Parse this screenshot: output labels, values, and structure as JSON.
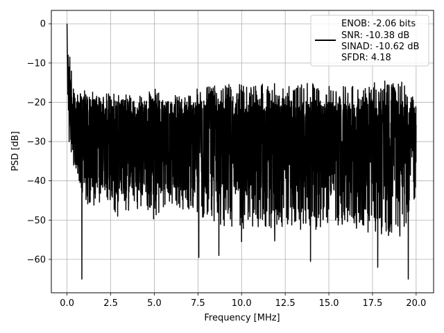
{
  "chart_data": {
    "type": "line",
    "xlabel": "Frequency [MHz]",
    "ylabel": "PSD [dB]",
    "xlim": [
      -0.9,
      21.0
    ],
    "ylim": [
      -68.5,
      3.4
    ],
    "xticks": [
      0.0,
      2.5,
      5.0,
      7.5,
      10.0,
      12.5,
      15.0,
      17.5,
      20.0
    ],
    "xtick_labels": [
      "0.0",
      "2.5",
      "5.0",
      "7.5",
      "10.0",
      "12.5",
      "15.0",
      "17.5",
      "20.0"
    ],
    "yticks": [
      0,
      -10,
      -20,
      -30,
      -40,
      -50,
      -60
    ],
    "ytick_labels": [
      "0",
      "−10",
      "−20",
      "−30",
      "−40",
      "−50",
      "−60"
    ],
    "grid": true,
    "legend_position": "top-right",
    "legend_lines": [
      "ENOB: -2.06 bits",
      "SNR: -10.38 dB",
      "SINAD: -10.62 dB",
      "SFDR: 4.18"
    ],
    "series": [
      {
        "color": "#000000",
        "x": [
          0.0,
          0.02,
          0.04,
          0.06,
          0.08,
          0.1,
          0.12,
          0.15,
          0.2,
          0.25,
          0.3,
          0.4,
          0.5,
          0.6,
          0.8,
          1.0,
          1.5,
          2.0,
          3.0,
          4.0,
          5.0,
          6.0,
          7.0,
          8.0,
          9.0,
          10.0,
          11.0,
          12.0,
          13.0,
          14.0,
          15.0,
          16.0,
          17.0,
          18.0,
          19.0,
          20.0
        ],
        "values": [
          0,
          -10,
          -14,
          -9,
          -17,
          -12,
          -19,
          -15,
          -22,
          -18,
          -27,
          -22,
          -31,
          -28,
          -30,
          -29,
          -30,
          -30,
          -30,
          -30,
          -30,
          -30,
          -30,
          -30,
          -30,
          -30,
          -30,
          -30,
          -30,
          -30,
          -30,
          -30,
          -30,
          -30,
          -30,
          -30
        ],
        "band_upper": [
          0,
          -8,
          -12,
          -8,
          -13,
          -11,
          -15,
          -14,
          -17,
          -17,
          -18,
          -19,
          -19,
          -19,
          -17,
          -18,
          -19,
          -19,
          -19,
          -20,
          -19,
          -20,
          -20,
          -19,
          -20,
          -20,
          -19,
          -20,
          -21,
          -19,
          -20,
          -20,
          -19,
          -20,
          -19,
          -22
        ],
        "band_lower": [
          0,
          -12,
          -18,
          -14,
          -22,
          -25,
          -30,
          -31,
          -34,
          -35,
          -36,
          -37,
          -40,
          -41,
          -43,
          -45,
          -48,
          -45,
          -49,
          -47,
          -50,
          -46,
          -49,
          -50,
          -52,
          -54,
          -52,
          -53,
          -52,
          -53,
          -52,
          -51,
          -53,
          -54,
          -55,
          -45
        ]
      }
    ],
    "dips": [
      {
        "x": 0.85,
        "value": -65
      },
      {
        "x": 2.9,
        "value": -49
      },
      {
        "x": 7.55,
        "value": -59.5
      },
      {
        "x": 8.7,
        "value": -59
      },
      {
        "x": 10.0,
        "value": -55.5
      },
      {
        "x": 11.9,
        "value": -55.3
      },
      {
        "x": 13.95,
        "value": -60.5
      },
      {
        "x": 17.8,
        "value": -62
      },
      {
        "x": 19.55,
        "value": -65
      }
    ]
  }
}
